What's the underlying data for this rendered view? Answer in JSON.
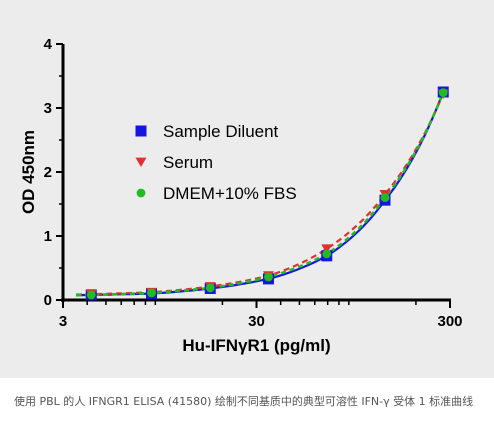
{
  "chart_data": {
    "type": "scatter",
    "xlabel": "Hu-IFNγR1 (pg/ml)",
    "ylabel": "OD 450nm",
    "x_scale": "log",
    "xlim": [
      3,
      300
    ],
    "ylim": [
      0,
      4
    ],
    "x_ticks": [
      {
        "value": 3,
        "label": "3"
      },
      {
        "value": 30,
        "label": "30"
      },
      {
        "value": 300,
        "label": "300"
      }
    ],
    "y_ticks": [
      {
        "value": 0,
        "label": "0"
      },
      {
        "value": 1,
        "label": "1"
      },
      {
        "value": 2,
        "label": "2"
      },
      {
        "value": 3,
        "label": "3"
      },
      {
        "value": 4,
        "label": "4"
      }
    ],
    "legend_position": "upper-left",
    "series": [
      {
        "name": "Sample Diluent",
        "marker": "square",
        "color": "#1515e0",
        "x": [
          4.2,
          8.6,
          17.3,
          34.6,
          69.2,
          138.4,
          276.8
        ],
        "y": [
          0.08,
          0.1,
          0.18,
          0.33,
          0.69,
          1.56,
          3.25
        ]
      },
      {
        "name": "Serum",
        "marker": "triangle-down",
        "color": "#e03030",
        "x": [
          4.2,
          8.6,
          17.3,
          34.6,
          69.2,
          138.4,
          276.8
        ],
        "y": [
          0.09,
          0.12,
          0.21,
          0.38,
          0.8,
          1.65,
          3.22
        ]
      },
      {
        "name": "DMEM+10% FBS",
        "marker": "circle",
        "color": "#22bb22",
        "x": [
          4.2,
          8.6,
          17.3,
          34.6,
          69.2,
          138.4,
          276.8
        ],
        "y": [
          0.08,
          0.11,
          0.19,
          0.36,
          0.72,
          1.6,
          3.24
        ]
      }
    ]
  },
  "caption": "使用 PBL 的人 IFNGR1 ELISA (41580) 绘制不同基质中的典型可溶性 IFN-γ 受体 1 标准曲线"
}
